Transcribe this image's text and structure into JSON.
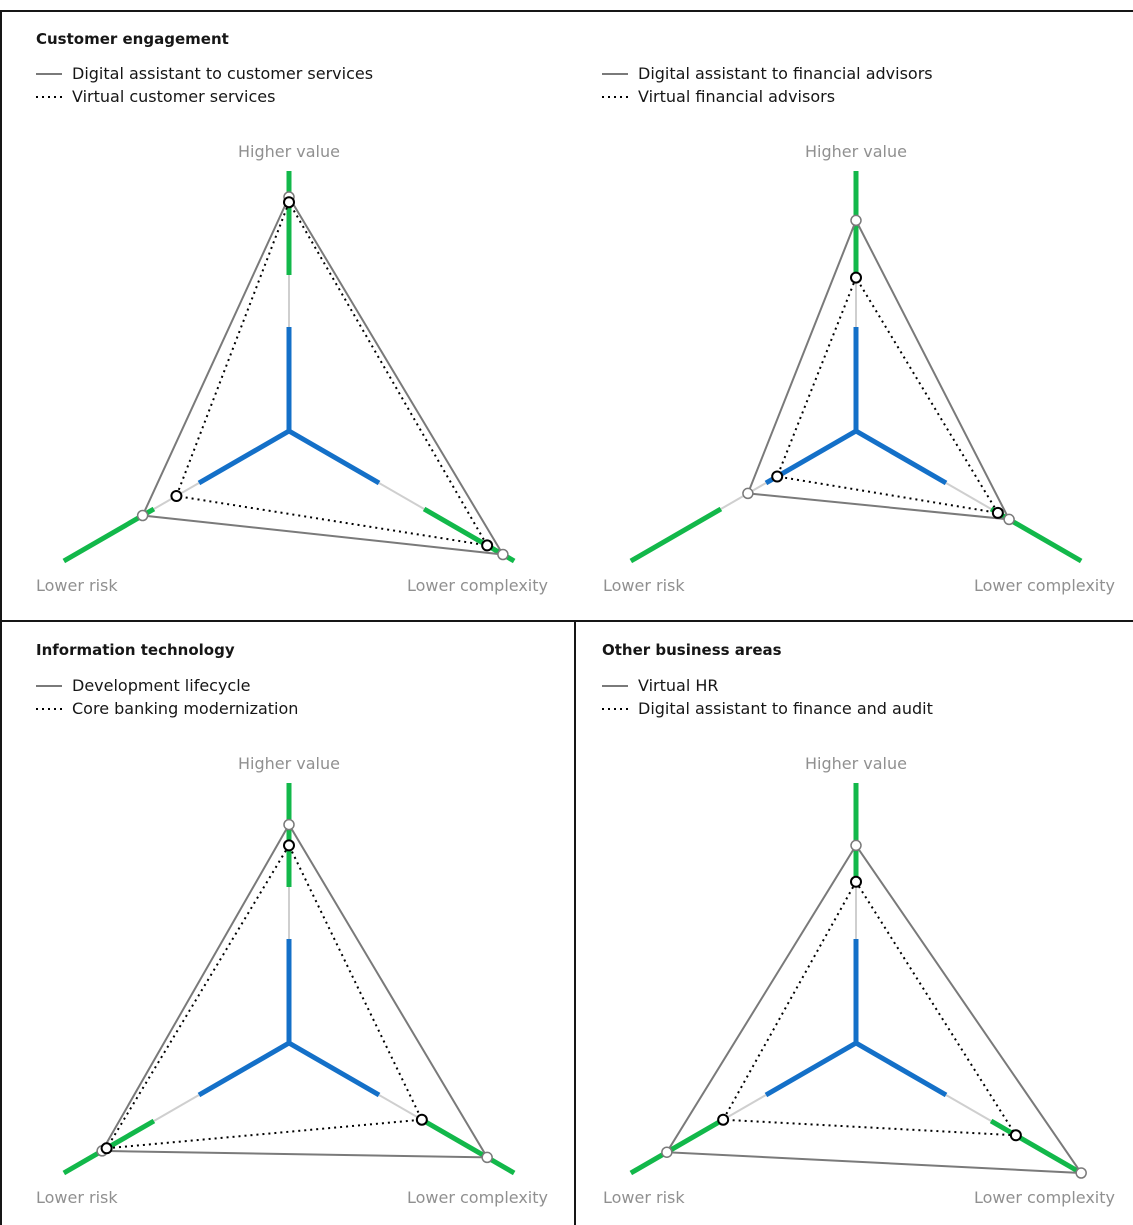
{
  "colors": {
    "outline_gray": "#7a7a7a",
    "dotted_black": "#000000",
    "axis_green": "#12b84a",
    "axis_blue": "#1470c8",
    "axis_light": "#cfcfcf",
    "axis_label_gray": "#909090"
  },
  "axis_labels": {
    "top": "Higher value",
    "left": "Lower risk",
    "right": "Lower complexity"
  },
  "chart_data": [
    {
      "type": "radar",
      "title": "Customer engagement",
      "axes": [
        "Higher value",
        "Lower risk",
        "Lower complexity"
      ],
      "range": [
        0,
        1
      ],
      "series": [
        {
          "name": "Digital assistant to customer services",
          "style": "solid",
          "values": [
            0.9,
            0.65,
            0.95
          ]
        },
        {
          "name": "Virtual customer services",
          "style": "dotted",
          "values": [
            0.88,
            0.5,
            0.88
          ]
        }
      ]
    },
    {
      "type": "radar",
      "title": "",
      "axes": [
        "Higher value",
        "Lower risk",
        "Lower complexity"
      ],
      "range": [
        0,
        1
      ],
      "series": [
        {
          "name": "Digital assistant to financial advisors",
          "style": "solid",
          "values": [
            0.81,
            0.48,
            0.68
          ]
        },
        {
          "name": "Virtual financial advisors",
          "style": "dotted",
          "values": [
            0.59,
            0.35,
            0.63
          ]
        }
      ]
    },
    {
      "type": "radar",
      "title": "Information technology",
      "axes": [
        "Higher value",
        "Lower risk",
        "Lower complexity"
      ],
      "range": [
        0,
        1
      ],
      "series": [
        {
          "name": "Development lifecycle",
          "style": "solid",
          "values": [
            0.84,
            0.83,
            0.88
          ]
        },
        {
          "name": "Core banking modernization",
          "style": "dotted",
          "values": [
            0.76,
            0.81,
            0.59
          ]
        }
      ]
    },
    {
      "type": "radar",
      "title": "Other business areas",
      "axes": [
        "Higher value",
        "Lower risk",
        "Lower complexity"
      ],
      "range": [
        0,
        1
      ],
      "series": [
        {
          "name": "Virtual HR",
          "style": "solid",
          "values": [
            0.76,
            0.84,
            1.0
          ]
        },
        {
          "name": "Digital assistant to finance and audit",
          "style": "dotted",
          "values": [
            0.62,
            0.59,
            0.71
          ]
        }
      ]
    }
  ]
}
